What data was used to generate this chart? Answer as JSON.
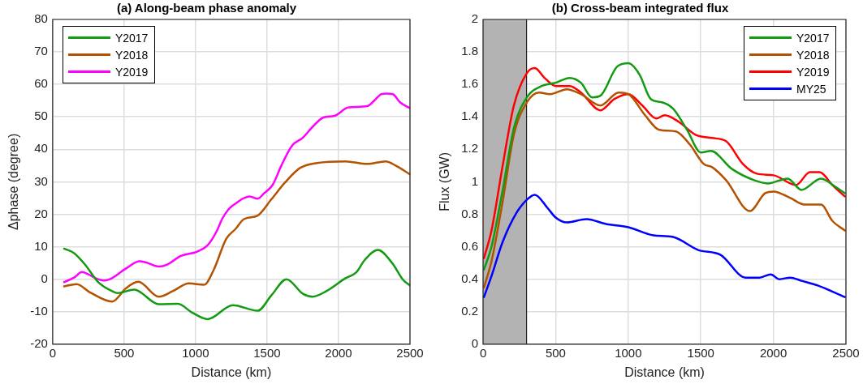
{
  "chart_data": [
    {
      "type": "line",
      "title": "(a) Along-beam phase anomaly",
      "xlabel": "Distance (km)",
      "ylabel": "Δphase (degree)",
      "xlim": [
        0,
        2500
      ],
      "xticks": [
        0,
        500,
        1000,
        1500,
        2000,
        2500
      ],
      "ylim": [
        -20,
        80
      ],
      "yticks": [
        -20,
        -10,
        0,
        10,
        20,
        30,
        40,
        50,
        60,
        70,
        80
      ],
      "grid": true,
      "legend": "top left",
      "marker": "none",
      "line_style": "solid",
      "series": [
        {
          "name": "Y2017",
          "color": "#139a13",
          "x": [
            80,
            148,
            225,
            321,
            417,
            455,
            570,
            743,
            877,
            973,
            1085,
            1261,
            1434,
            1530,
            1636,
            1751,
            1818,
            1914,
            2049,
            2126,
            2183,
            2275,
            2375,
            2452,
            2500
          ],
          "values": [
            9.4,
            8.1,
            4.6,
            -1,
            -3.7,
            -4.3,
            -3.2,
            -7.7,
            -7.6,
            -10.2,
            -12.3,
            -8,
            -9.7,
            -5,
            0,
            -4.5,
            -5.4,
            -3.7,
            0.3,
            2.2,
            5.9,
            9,
            5,
            -0.2,
            -1.9
          ]
        },
        {
          "name": "Y2018",
          "color": "#b35200",
          "x": [
            80,
            167,
            263,
            417,
            513,
            599,
            743,
            839,
            954,
            1060,
            1127,
            1214,
            1280,
            1338,
            1434,
            1530,
            1626,
            1732,
            1850,
            2049,
            2200,
            2330,
            2400,
            2500
          ],
          "values": [
            -2.2,
            -1.5,
            -4.1,
            -6.9,
            -2.8,
            -0.8,
            -5.4,
            -3.7,
            -1.3,
            -1.7,
            2.9,
            12.4,
            15.5,
            18.5,
            19.6,
            24.6,
            29.8,
            34.3,
            35.8,
            36.3,
            35.5,
            36.3,
            35,
            32.3
          ]
        },
        {
          "name": "Y2019",
          "color": "#ff00ff",
          "x": [
            80,
            150,
            205,
            250,
            300,
            359,
            400,
            513,
            609,
            650,
            743,
            800,
            897,
            1012,
            1089,
            1150,
            1185,
            1230,
            1280,
            1330,
            1377,
            1434,
            1480,
            1540,
            1600,
            1674,
            1751,
            1820,
            1895,
            1972,
            2068,
            2202,
            2250,
            2300,
            2337,
            2380,
            2430,
            2500
          ],
          "values": [
            -0.9,
            0.5,
            2.2,
            1.5,
            0.3,
            -0.4,
            0,
            3.3,
            5.5,
            5.2,
            3.9,
            4.5,
            7.2,
            8.5,
            10.7,
            15,
            18.5,
            21.5,
            23.3,
            24.8,
            25.5,
            24.8,
            26.5,
            29.1,
            35,
            41.1,
            43.6,
            47,
            49.8,
            50.3,
            52.9,
            53.3,
            55,
            57,
            57.2,
            57,
            54.5,
            52.7
          ]
        }
      ]
    },
    {
      "type": "line",
      "title": "(b) Cross-beam integrated flux",
      "xlabel": "Distance (km)",
      "ylabel": "Flux (GW)",
      "xlim": [
        0,
        2500
      ],
      "xticks": [
        0,
        500,
        1000,
        1500,
        2000,
        2500
      ],
      "ylim": [
        0,
        2
      ],
      "yticks": [
        0,
        0.2,
        0.4,
        0.6,
        0.8,
        1,
        1.2,
        1.4,
        1.6,
        1.8,
        2
      ],
      "grid": true,
      "legend": "top right",
      "marker": "none",
      "line_style": "solid",
      "bands": [
        {
          "axis": "x",
          "from": 0,
          "to": 300,
          "color": "#b3b3b3"
        }
      ],
      "ref_lines": [
        {
          "axis": "x",
          "value": 300,
          "color": "#000000"
        }
      ],
      "series": [
        {
          "name": "Y2017",
          "color": "#139a13",
          "x": [
            6,
            58,
            135,
            212,
            302,
            404,
            500,
            597,
            674,
            751,
            808,
            924,
            1001,
            1078,
            1155,
            1232,
            1309,
            1405,
            1501,
            1569,
            1713,
            1867,
            1963,
            2098,
            2194,
            2328,
            2425,
            2492
          ],
          "values": [
            0.46,
            0.6,
            0.95,
            1.33,
            1.52,
            1.59,
            1.61,
            1.64,
            1.61,
            1.52,
            1.53,
            1.71,
            1.73,
            1.66,
            1.51,
            1.49,
            1.45,
            1.32,
            1.18,
            1.19,
            1.08,
            1.01,
            0.99,
            1.02,
            0.95,
            1.02,
            0.97,
            0.93
          ]
        },
        {
          "name": "Y2018",
          "color": "#b35200",
          "x": [
            6,
            58,
            135,
            212,
            302,
            385,
            462,
            577,
            674,
            808,
            934,
            1001,
            1116,
            1213,
            1328,
            1424,
            1520,
            1578,
            1674,
            1838,
            1944,
            2002,
            2117,
            2213,
            2328,
            2406,
            2492
          ],
          "values": [
            0.35,
            0.51,
            0.88,
            1.29,
            1.49,
            1.55,
            1.54,
            1.57,
            1.54,
            1.47,
            1.55,
            1.54,
            1.41,
            1.32,
            1.31,
            1.23,
            1.11,
            1.09,
            1.01,
            0.82,
            0.93,
            0.94,
            0.9,
            0.86,
            0.86,
            0.76,
            0.7
          ]
        },
        {
          "name": "Y2019",
          "color": "#ff0000",
          "x": [
            6,
            58,
            135,
            212,
            302,
            356,
            423,
            500,
            597,
            674,
            808,
            905,
            1001,
            1097,
            1193,
            1251,
            1347,
            1463,
            1578,
            1674,
            1790,
            1886,
            2002,
            2156,
            2252,
            2319,
            2406,
            2492
          ],
          "values": [
            0.53,
            0.7,
            1.1,
            1.47,
            1.67,
            1.7,
            1.64,
            1.59,
            1.59,
            1.55,
            1.44,
            1.51,
            1.54,
            1.47,
            1.39,
            1.41,
            1.37,
            1.29,
            1.27,
            1.25,
            1.11,
            1.05,
            1.04,
            0.98,
            1.06,
            1.06,
            0.98,
            0.91
          ]
        },
        {
          "name": "MY25",
          "color": "#0000ff",
          "x": [
            6,
            58,
            135,
            231,
            302,
            356,
            443,
            500,
            577,
            712,
            847,
            1001,
            1174,
            1309,
            1482,
            1636,
            1809,
            1905,
            1982,
            2040,
            2117,
            2194,
            2309,
            2492
          ],
          "values": [
            0.29,
            0.42,
            0.63,
            0.81,
            0.89,
            0.92,
            0.84,
            0.78,
            0.75,
            0.77,
            0.74,
            0.72,
            0.67,
            0.66,
            0.58,
            0.55,
            0.41,
            0.41,
            0.43,
            0.4,
            0.41,
            0.39,
            0.36,
            0.29
          ]
        }
      ]
    }
  ]
}
